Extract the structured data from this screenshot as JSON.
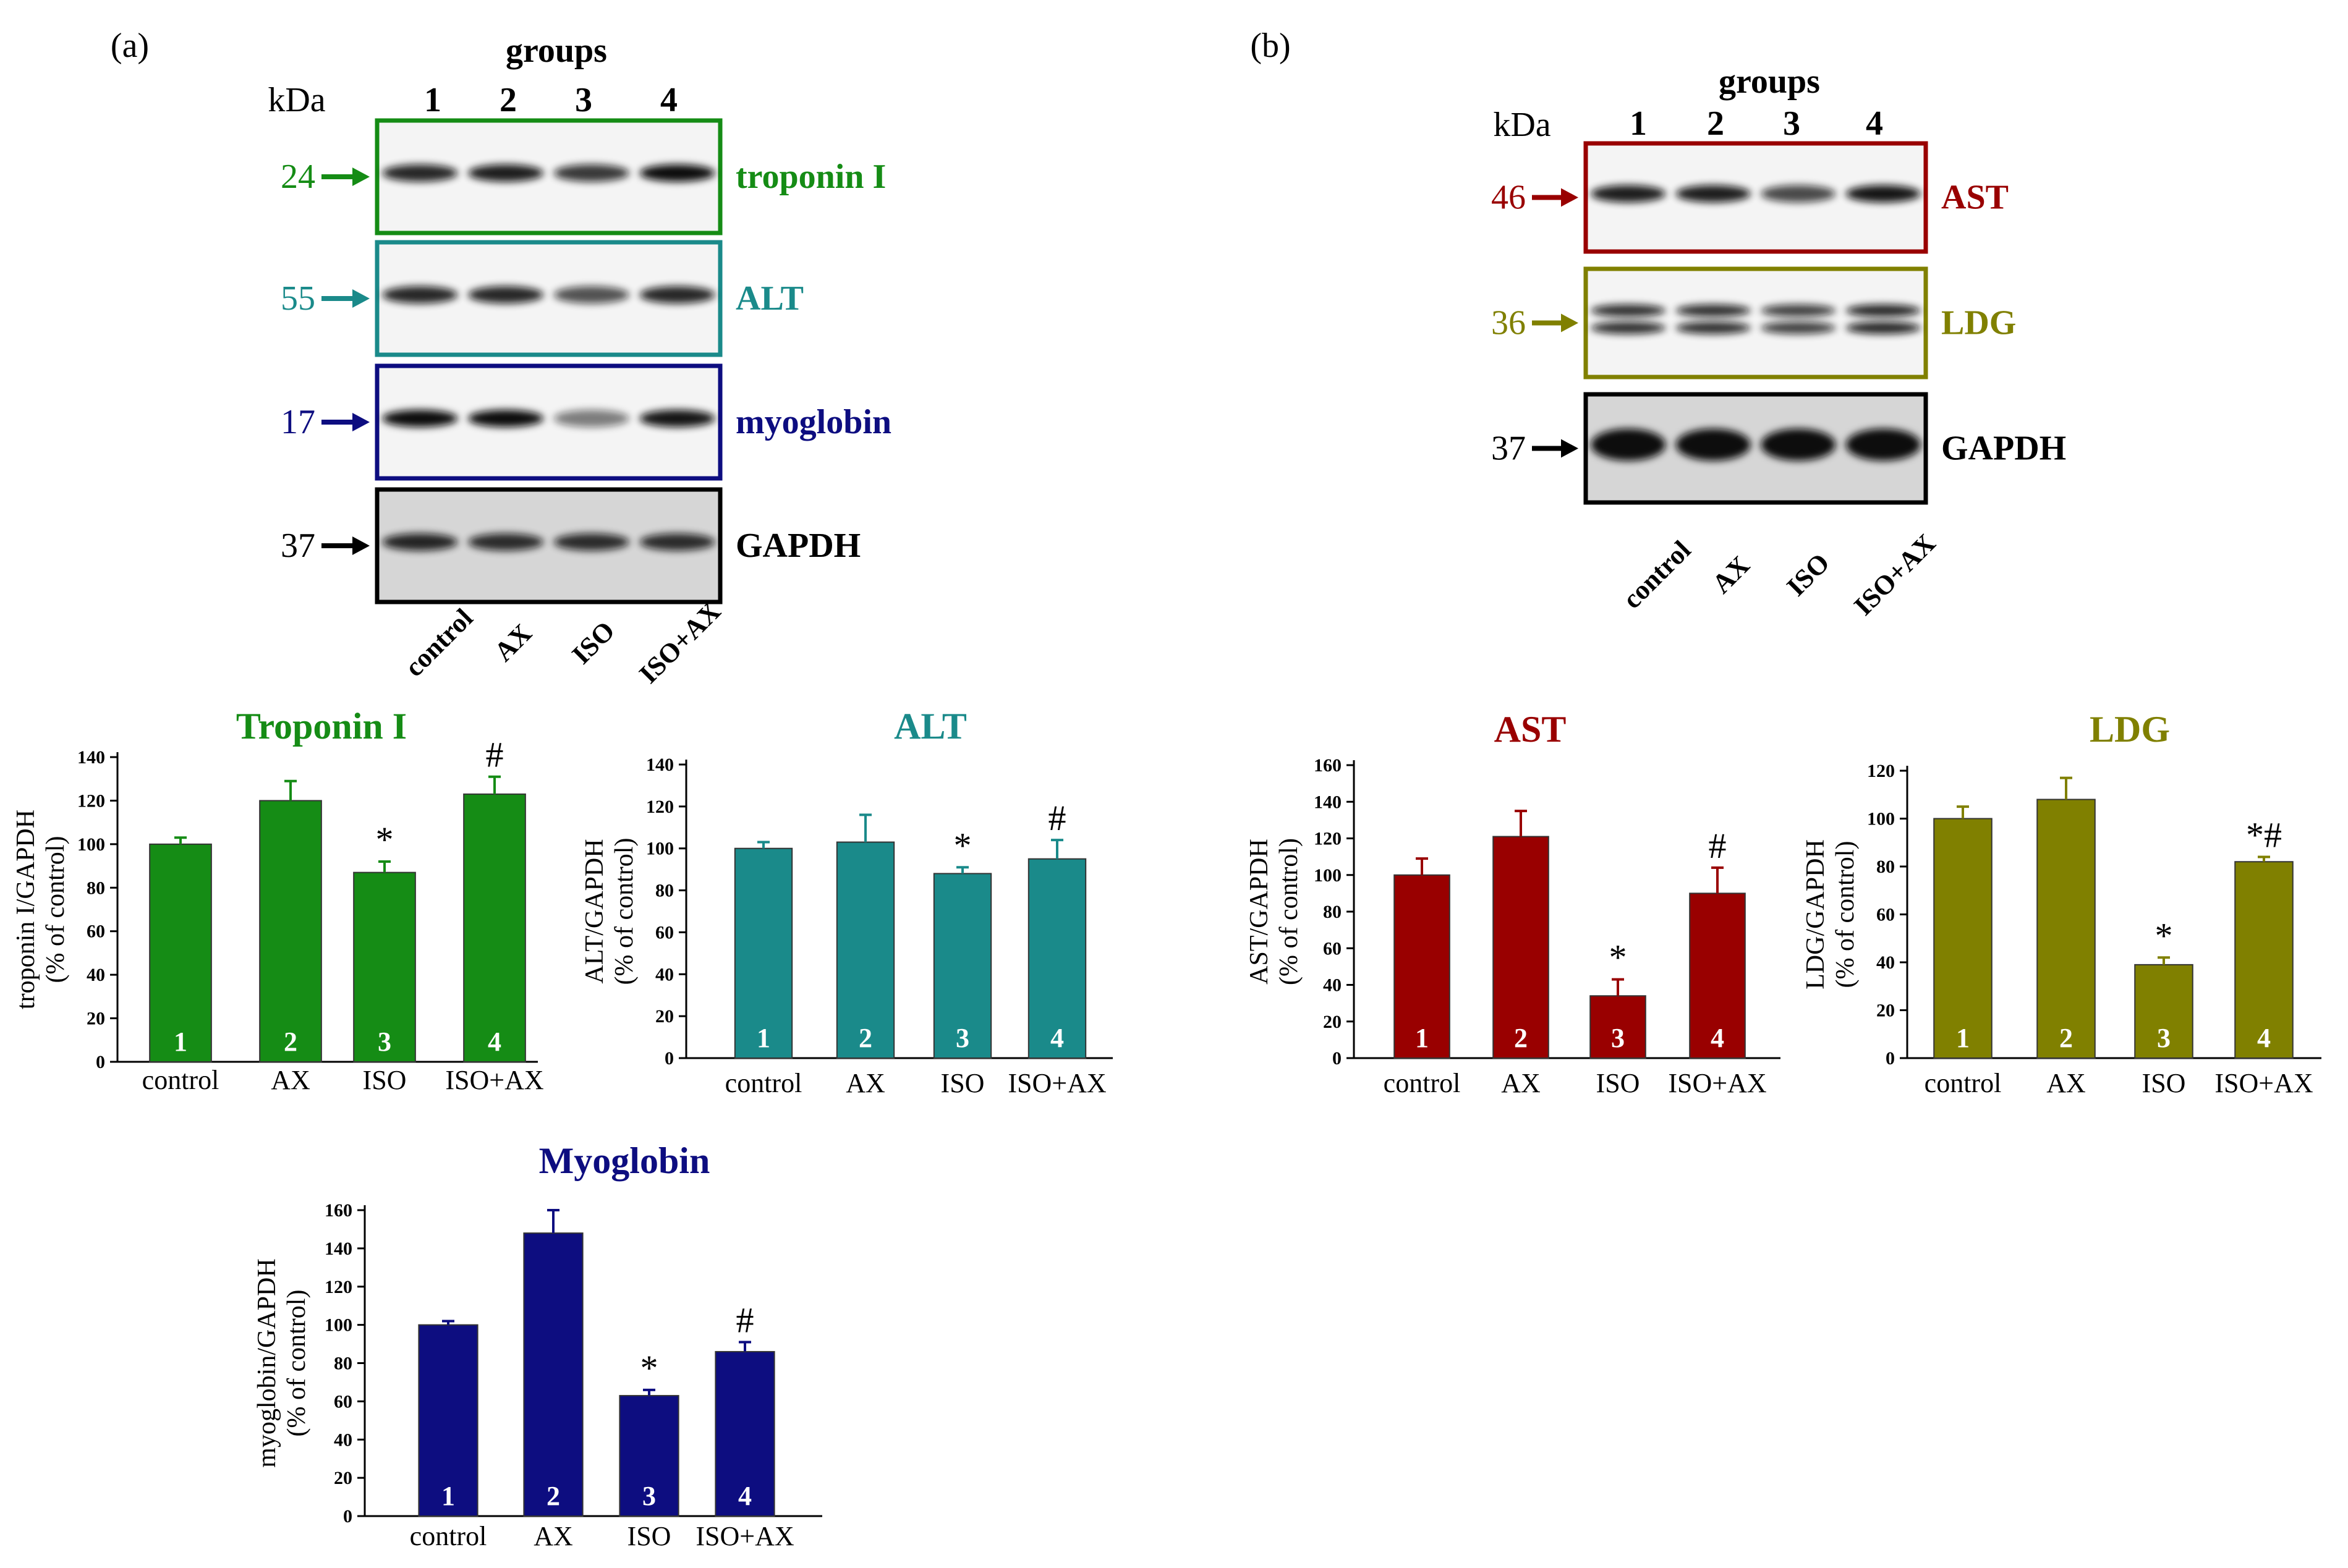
{
  "panels": [
    {
      "panel_label": "(a)",
      "groups_label": "groups",
      "kda_label": "kDa",
      "lane_numbers": [
        "1",
        "2",
        "3",
        "4"
      ],
      "lane_labels": [
        "control",
        "AX",
        "ISO",
        "ISO+AX"
      ],
      "blots": [
        {
          "name": "troponin I",
          "kda": "24",
          "color": "#158c15",
          "intensity": [
            0.85,
            0.9,
            0.75,
            1.0
          ],
          "doublet": false
        },
        {
          "name": "ALT",
          "kda": "55",
          "color": "#1a8a8a",
          "intensity": [
            0.85,
            0.85,
            0.6,
            0.85
          ],
          "doublet": false
        },
        {
          "name": "myoglobin",
          "kda": "17",
          "color": "#0d0d80",
          "intensity": [
            1.0,
            1.0,
            0.35,
            0.95
          ],
          "doublet": false
        },
        {
          "name": "GAPDH",
          "kda": "37",
          "color": "#000000",
          "intensity": [
            0.85,
            0.8,
            0.8,
            0.8
          ],
          "doublet": false
        }
      ]
    },
    {
      "panel_label": "(b)",
      "groups_label": "groups",
      "kda_label": "kDa",
      "lane_numbers": [
        "1",
        "2",
        "3",
        "4"
      ],
      "lane_labels": [
        "control",
        "AX",
        "ISO",
        "ISO+AX"
      ],
      "blots": [
        {
          "name": "AST",
          "kda": "46",
          "color": "#990000",
          "intensity": [
            0.9,
            0.9,
            0.65,
            0.95
          ],
          "doublet": false
        },
        {
          "name": "LDG",
          "kda": "36",
          "color": "#808000",
          "intensity": [
            0.8,
            0.8,
            0.7,
            0.85
          ],
          "doublet": true
        },
        {
          "name": "GAPDH",
          "kda": "37",
          "color": "#000000",
          "intensity": [
            1.0,
            1.0,
            1.0,
            1.0
          ],
          "doublet": false
        }
      ]
    }
  ],
  "chart_data": [
    {
      "type": "bar",
      "title": "Troponin I",
      "ylabel": [
        "troponin I/GAPDH",
        "(% of control)"
      ],
      "categories": [
        "control",
        "AX",
        "ISO",
        "ISO+AX"
      ],
      "bar_numbers": [
        "1",
        "2",
        "3",
        "4"
      ],
      "values": [
        100,
        120,
        87,
        123
      ],
      "errors": [
        3,
        9,
        5,
        8
      ],
      "annotations": [
        "",
        "",
        "*",
        "#"
      ],
      "ylim": [
        0,
        140
      ],
      "yticks": [
        0,
        20,
        40,
        60,
        80,
        100,
        120,
        140
      ],
      "color": "#158c15"
    },
    {
      "type": "bar",
      "title": "ALT",
      "ylabel": [
        "ALT/GAPDH",
        "(% of control)"
      ],
      "categories": [
        "control",
        "AX",
        "ISO",
        "ISO+AX"
      ],
      "bar_numbers": [
        "1",
        "2",
        "3",
        "4"
      ],
      "values": [
        100,
        103,
        88,
        95
      ],
      "errors": [
        3,
        13,
        3,
        9
      ],
      "annotations": [
        "",
        "",
        "*",
        "#"
      ],
      "ylim": [
        0,
        140
      ],
      "yticks": [
        0,
        20,
        40,
        60,
        80,
        100,
        120,
        140
      ],
      "color": "#1a8a8a"
    },
    {
      "type": "bar",
      "title": "Myoglobin",
      "ylabel": [
        "myoglobin/GAPDH",
        "(% of control)"
      ],
      "categories": [
        "control",
        "AX",
        "ISO",
        "ISO+AX"
      ],
      "bar_numbers": [
        "1",
        "2",
        "3",
        "4"
      ],
      "values": [
        100,
        148,
        63,
        86
      ],
      "errors": [
        2,
        12,
        3,
        5
      ],
      "annotations": [
        "",
        "",
        "*",
        "#"
      ],
      "ylim": [
        0,
        160
      ],
      "yticks": [
        0,
        20,
        40,
        60,
        80,
        100,
        120,
        140,
        160
      ],
      "color": "#0d0d80"
    },
    {
      "type": "bar",
      "title": "AST",
      "ylabel": [
        "AST/GAPDH",
        "(% of control)"
      ],
      "categories": [
        "control",
        "AX",
        "ISO",
        "ISO+AX"
      ],
      "bar_numbers": [
        "1",
        "2",
        "3",
        "4"
      ],
      "values": [
        100,
        121,
        34,
        90
      ],
      "errors": [
        9,
        14,
        9,
        14
      ],
      "annotations": [
        "",
        "",
        "*",
        "#"
      ],
      "ylim": [
        0,
        160
      ],
      "yticks": [
        0,
        20,
        40,
        60,
        80,
        100,
        120,
        140,
        160
      ],
      "color": "#990000"
    },
    {
      "type": "bar",
      "title": "LDG",
      "ylabel": [
        "LDG/GAPDH",
        "(% of control)"
      ],
      "categories": [
        "control",
        "AX",
        "ISO",
        "ISO+AX"
      ],
      "bar_numbers": [
        "1",
        "2",
        "3",
        "4"
      ],
      "values": [
        100,
        108,
        39,
        82
      ],
      "errors": [
        5,
        9,
        3,
        2
      ],
      "annotations": [
        "",
        "",
        "*",
        "*#"
      ],
      "ylim": [
        0,
        120
      ],
      "yticks": [
        0,
        20,
        40,
        60,
        80,
        100,
        120
      ],
      "color": "#808000"
    }
  ]
}
